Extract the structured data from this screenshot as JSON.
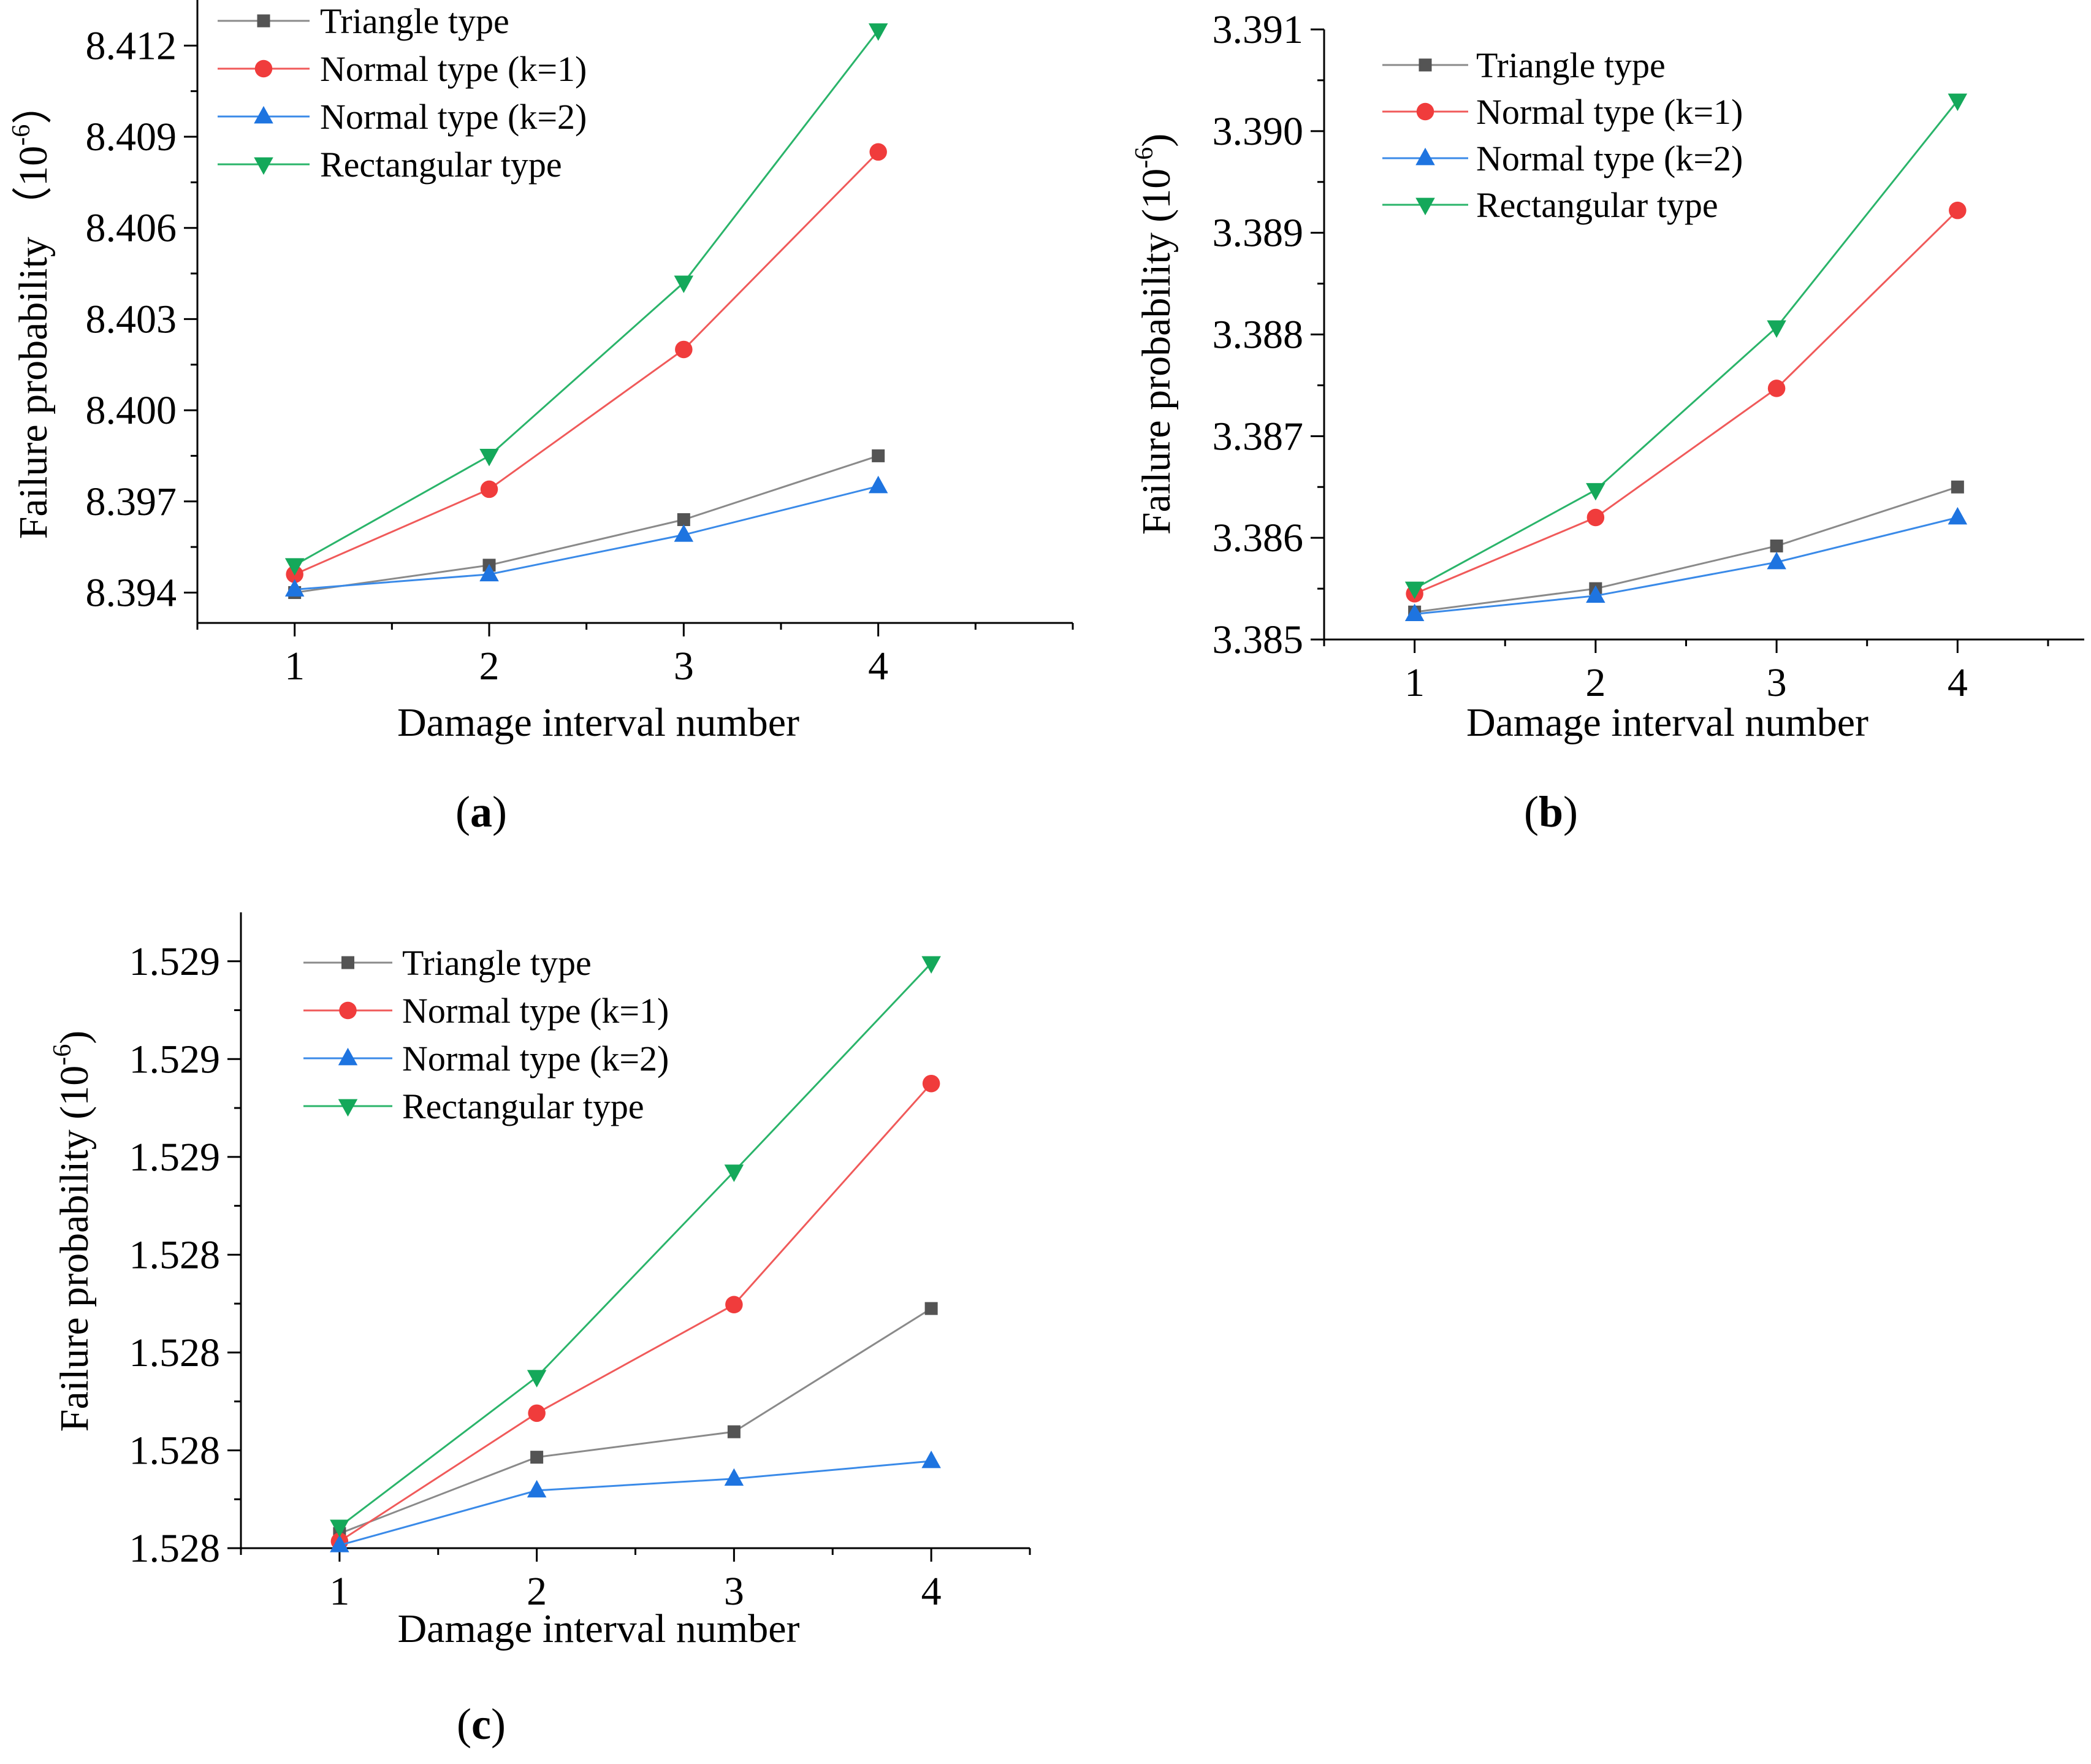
{
  "chart_data": [
    {
      "type": "line",
      "panel_label": {
        "prefix": "(",
        "letter": "a",
        "suffix": ")"
      },
      "xlabel": "Damage  interval number",
      "ylabel": "Failure probability （10",
      "ylabel_sup": "-6",
      "ylabel_close": "）",
      "x": [
        1,
        2,
        3,
        4
      ],
      "xlim": [
        0.5,
        5.0
      ],
      "ylim": [
        8.393,
        8.4135
      ],
      "yticks": [
        8.394,
        8.397,
        8.4,
        8.403,
        8.406,
        8.409,
        8.412
      ],
      "ytick_labels": [
        "8.394",
        "8.397",
        "8.400",
        "8.403",
        "8.406",
        "8.409",
        "8.412"
      ],
      "xtick_labels": [
        "1",
        "2",
        "3",
        "4"
      ],
      "legend": "top-left",
      "grid": false,
      "series": [
        {
          "name": "Triangle type",
          "values": [
            8.394,
            8.3949,
            8.3964,
            8.3985
          ],
          "color": "#545454",
          "line_color": "#8a8a8a",
          "marker": "square"
        },
        {
          "name": "Normal type (k=1)",
          "values": [
            8.3946,
            8.3974,
            8.402,
            8.4085
          ],
          "color": "#f03c3c",
          "line_color": "#f05a5a",
          "marker": "circle"
        },
        {
          "name": "Normal type (k=2)",
          "values": [
            8.3941,
            8.3946,
            8.3959,
            8.3975
          ],
          "color": "#1e74e0",
          "line_color": "#3a8ae8",
          "marker": "triangle-up"
        },
        {
          "name": "Rectangular type",
          "values": [
            8.3949,
            8.3985,
            8.4042,
            8.4125
          ],
          "color": "#14a85a",
          "line_color": "#2ab46a",
          "marker": "triangle-down"
        }
      ]
    },
    {
      "type": "line",
      "panel_label": {
        "prefix": "(",
        "letter": "b",
        "suffix": ")"
      },
      "xlabel": "Damage  interval number",
      "ylabel": "Failure probability (10",
      "ylabel_sup": "-6",
      "ylabel_close": ")",
      "x": [
        1,
        2,
        3,
        4
      ],
      "xlim": [
        0.5,
        4.7
      ],
      "ylim": [
        3.385,
        3.391
      ],
      "yticks": [
        3.385,
        3.386,
        3.387,
        3.388,
        3.389,
        3.39,
        3.391
      ],
      "ytick_labels": [
        "3.385",
        "3.386",
        "3.387",
        "3.388",
        "3.389",
        "3.390",
        "3.391"
      ],
      "xtick_labels": [
        "1",
        "2",
        "3",
        "4"
      ],
      "legend": "top-left",
      "grid": false,
      "series": [
        {
          "name": "Triangle type",
          "values": [
            3.38527,
            3.3855,
            3.38592,
            3.3865
          ],
          "color": "#545454",
          "line_color": "#8a8a8a",
          "marker": "square"
        },
        {
          "name": "Normal type (k=1)",
          "values": [
            3.38545,
            3.3862,
            3.38747,
            3.38922
          ],
          "color": "#f03c3c",
          "line_color": "#f05a5a",
          "marker": "circle"
        },
        {
          "name": "Normal type (k=2)",
          "values": [
            3.38525,
            3.38543,
            3.38576,
            3.3862
          ],
          "color": "#1e74e0",
          "line_color": "#3a8ae8",
          "marker": "triangle-up"
        },
        {
          "name": "Rectangular type",
          "values": [
            3.3855,
            3.38647,
            3.38807,
            3.3903
          ],
          "color": "#14a85a",
          "line_color": "#2ab46a",
          "marker": "triangle-down"
        }
      ]
    },
    {
      "type": "line",
      "panel_label": {
        "prefix": "(",
        "letter": "c",
        "suffix": ")"
      },
      "xlabel": "Damage  interval number",
      "ylabel": "Failure probability (10",
      "ylabel_sup": "-6",
      "ylabel_close": ")",
      "x": [
        1,
        2,
        3,
        4
      ],
      "xlim": [
        0.5,
        4.5
      ],
      "ylim": [
        0,
        6.5
      ],
      "yticks": [
        0,
        1,
        2,
        3,
        4,
        5,
        6
      ],
      "ytick_labels": [
        "1.528",
        "1.528",
        "1.528",
        "1.528",
        "1.529",
        "1.529",
        "1.529"
      ],
      "xtick_labels": [
        "1",
        "2",
        "3",
        "4"
      ],
      "legend": "top-left",
      "grid": false,
      "series": [
        {
          "name": "Triangle type",
          "values": [
            0.15,
            0.93,
            1.19,
            2.45
          ],
          "color": "#545454",
          "line_color": "#8a8a8a",
          "marker": "square"
        },
        {
          "name": "Normal type (k=1)",
          "values": [
            0.07,
            1.38,
            2.49,
            4.75
          ],
          "color": "#f03c3c",
          "line_color": "#f05a5a",
          "marker": "circle"
        },
        {
          "name": "Normal type (k=2)",
          "values": [
            0.03,
            0.59,
            0.71,
            0.89
          ],
          "color": "#1e74e0",
          "line_color": "#3a8ae8",
          "marker": "triangle-up"
        },
        {
          "name": " Rectangular type",
          "values": [
            0.22,
            1.75,
            3.85,
            5.98
          ],
          "color": "#14a85a",
          "line_color": "#2ab46a",
          "marker": "triangle-down"
        }
      ]
    }
  ]
}
